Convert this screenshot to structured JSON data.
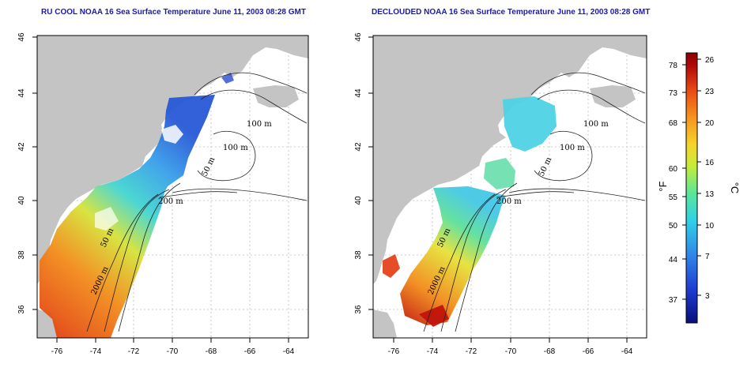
{
  "titles": {
    "left": "RU COOL NOAA 16 Sea Surface Temperature June 11, 2003 08:28 GMT",
    "right": "DECLOUDED NOAA 16 Sea Surface Temperature June 11, 2003 08:28 GMT"
  },
  "axes": {
    "lat_ticks": [
      "46",
      "44",
      "42",
      "40",
      "38",
      "36"
    ],
    "lon_ticks": [
      "-76",
      "-74",
      "-72",
      "-70",
      "-68",
      "-66",
      "-64"
    ]
  },
  "contour_labels": [
    "100 m",
    "100 m",
    "50 m",
    "200 m",
    "50 m",
    "2000 m"
  ],
  "colorbar": {
    "fahrenheit_label": "°F",
    "celsius_label": "°C",
    "fahrenheit_ticks": [
      "78",
      "73",
      "68",
      "60",
      "55",
      "50",
      "44",
      "37"
    ],
    "celsius_ticks": [
      "26",
      "23",
      "20",
      "16",
      "13",
      "10",
      "7",
      "3"
    ],
    "colors": [
      "#08107a",
      "#1e3ad0",
      "#2f86ea",
      "#2fd2e6",
      "#59e69a",
      "#c6ec3a",
      "#f6d42a",
      "#f6951e",
      "#ea4a12",
      "#b30a0a",
      "#8a0000"
    ]
  },
  "colors": {
    "land": "#c4c4c4",
    "title": "#1a1ab0"
  }
}
